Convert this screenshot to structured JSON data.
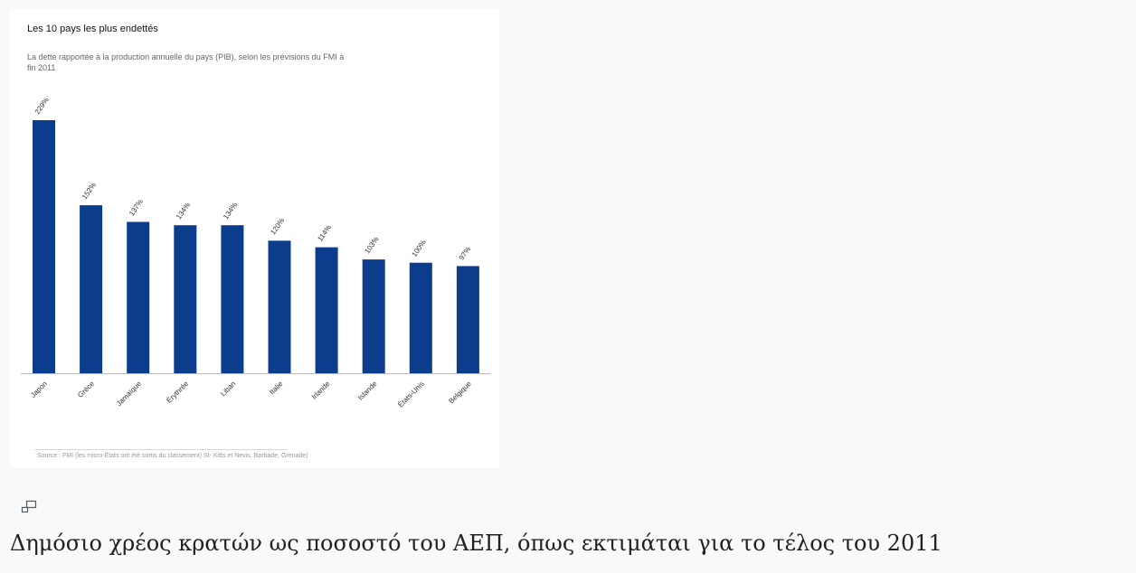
{
  "chart_data": {
    "type": "bar",
    "title": "Les 10 pays les plus endettés",
    "subtitle": "La dette rapportée à la production annuelle du pays (PIB), selon les prévisions du FMI à fin 2011",
    "categories": [
      "Japon",
      "Grèce",
      "Jamaïque",
      "Érythrée",
      "Liban",
      "Italie",
      "Irlande",
      "Islande",
      "États-Unis",
      "Belgique"
    ],
    "values": [
      229,
      152,
      137,
      134,
      134,
      120,
      114,
      103,
      100,
      97
    ],
    "value_labels": [
      "229%",
      "152%",
      "137%",
      "134%",
      "134%",
      "120%",
      "114%",
      "103%",
      "100%",
      "97%"
    ],
    "bar_color": "#0b3d8c",
    "ylim": [
      0,
      230
    ],
    "grid": false,
    "source": "Source : FMI (les micro-États ont été sortis du classement) St- Kitts et Nevis, Barbade, Grenade)"
  },
  "figure": {
    "icon": "magnify-icon",
    "caption": "Δημόσιο χρέος κρατών ως ποσοστό του ΑΕΠ, όπως εκτιμάται για το τέλος του 2011"
  }
}
